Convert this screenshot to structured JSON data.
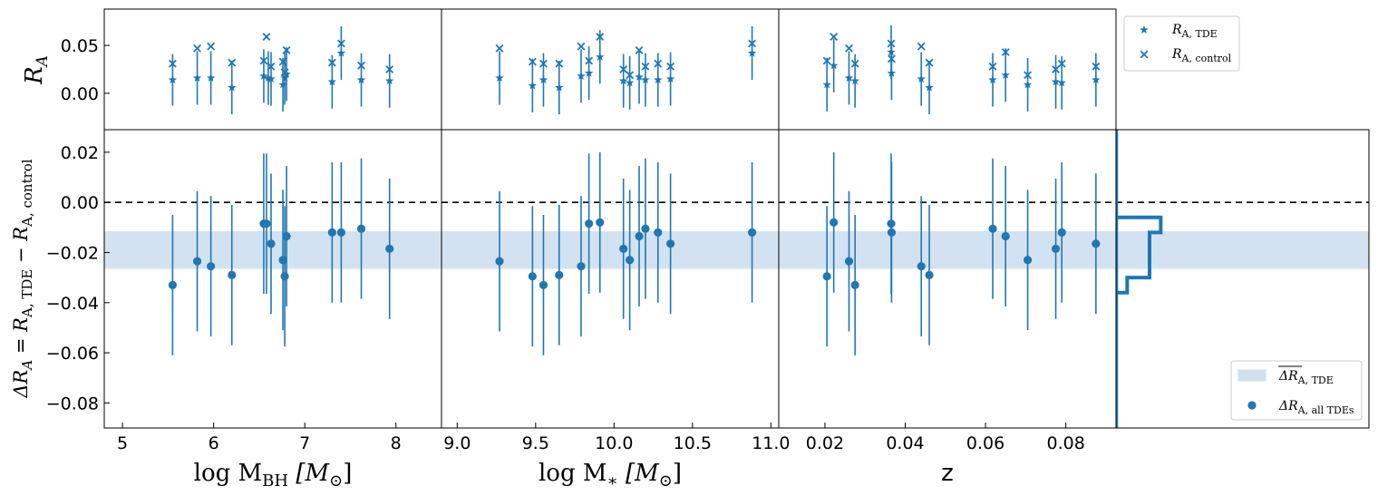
{
  "colors": {
    "series": "#1f77b4",
    "band": "#aecbe3",
    "axis": "#000000"
  },
  "chart_data": [
    {
      "panel": "top-mbh",
      "type": "scatter",
      "ylabel": "R_A",
      "ylim": [
        -0.038,
        0.088
      ],
      "xlim": [
        4.8,
        8.5
      ],
      "yticks": [
        0.0,
        0.05
      ],
      "ytick_labels": [
        "0.00",
        "0.05"
      ],
      "series": [
        {
          "name": "R_A,TDE",
          "marker": "star",
          "x": [
            5.55,
            5.82,
            5.97,
            6.2,
            6.55,
            6.6,
            6.63,
            6.76,
            6.78,
            6.8,
            7.3,
            7.4,
            7.62,
            7.93
          ],
          "y": [
            0.014,
            0.016,
            0.016,
            0.006,
            0.018,
            0.016,
            0.015,
            0.009,
            0.016,
            0.02,
            0.012,
            0.042,
            0.014,
            0.013
          ],
          "err": [
            0.027,
            0.028,
            0.028,
            0.028,
            0.028,
            0.028,
            0.028,
            0.028,
            0.028,
            0.028,
            0.028,
            0.028,
            0.028,
            0.028
          ]
        },
        {
          "name": "R_A,control",
          "marker": "x",
          "x": [
            5.55,
            5.82,
            5.97,
            6.2,
            6.55,
            6.58,
            6.63,
            6.76,
            6.78,
            6.8,
            7.3,
            7.4,
            7.62,
            7.93
          ],
          "y": [
            0.031,
            0.047,
            0.049,
            0.032,
            0.034,
            0.059,
            0.028,
            0.033,
            0.022,
            0.045,
            0.032,
            0.052,
            0.029,
            0.025
          ]
        }
      ]
    },
    {
      "panel": "top-mstar",
      "type": "scatter",
      "ylim": [
        -0.038,
        0.088
      ],
      "xlim": [
        8.9,
        11.05
      ],
      "series": [
        {
          "name": "R_A,TDE",
          "marker": "star",
          "x": [
            9.27,
            9.48,
            9.55,
            9.65,
            9.79,
            9.84,
            9.91,
            10.06,
            10.1,
            10.16,
            10.2,
            10.28,
            10.36,
            10.88
          ],
          "y": [
            0.016,
            0.008,
            0.014,
            0.006,
            0.018,
            0.021,
            0.038,
            0.013,
            0.011,
            0.017,
            0.014,
            0.014,
            0.015,
            0.042
          ],
          "err": [
            0.028,
            0.028,
            0.028,
            0.028,
            0.028,
            0.028,
            0.028,
            0.028,
            0.028,
            0.028,
            0.028,
            0.028,
            0.028,
            0.028
          ]
        },
        {
          "name": "R_A,control",
          "marker": "x",
          "x": [
            9.27,
            9.48,
            9.55,
            9.65,
            9.79,
            9.84,
            9.91,
            10.06,
            10.1,
            10.16,
            10.2,
            10.28,
            10.36,
            10.88
          ],
          "y": [
            0.047,
            0.033,
            0.031,
            0.031,
            0.049,
            0.034,
            0.059,
            0.025,
            0.019,
            0.045,
            0.028,
            0.031,
            0.028,
            0.052
          ]
        }
      ]
    },
    {
      "panel": "top-z",
      "type": "scatter",
      "ylim": [
        -0.038,
        0.088
      ],
      "xlim": [
        0.0085,
        0.0925
      ],
      "series": [
        {
          "name": "R_A,TDE",
          "marker": "star",
          "x": [
            0.0205,
            0.0222,
            0.026,
            0.0275,
            0.0365,
            0.0366,
            0.044,
            0.046,
            0.0618,
            0.065,
            0.0705,
            0.0775,
            0.079,
            0.0875
          ],
          "y": [
            0.009,
            0.029,
            0.016,
            0.013,
            0.043,
            0.021,
            0.015,
            0.006,
            0.014,
            0.019,
            0.009,
            0.012,
            0.011,
            0.014
          ],
          "err": [
            0.028,
            0.028,
            0.028,
            0.028,
            0.028,
            0.028,
            0.028,
            0.028,
            0.028,
            0.028,
            0.028,
            0.028,
            0.028,
            0.028
          ]
        },
        {
          "name": "R_A,control",
          "marker": "x",
          "x": [
            0.0205,
            0.0222,
            0.026,
            0.0275,
            0.0365,
            0.0366,
            0.044,
            0.046,
            0.0618,
            0.065,
            0.0705,
            0.0775,
            0.079,
            0.0875
          ],
          "y": [
            0.034,
            0.059,
            0.047,
            0.031,
            0.052,
            0.036,
            0.049,
            0.032,
            0.028,
            0.043,
            0.019,
            0.025,
            0.031,
            0.028
          ]
        }
      ]
    },
    {
      "panel": "bottom-mbh",
      "type": "scatter",
      "xlabel": "log M_BH [M_☉]",
      "ylabel": "ΔR_A = R_A,TDE − R_A,control",
      "xlim": [
        4.8,
        8.5
      ],
      "ylim": [
        -0.09,
        0.029
      ],
      "xticks": [
        5,
        6,
        7,
        8
      ],
      "xtick_labels": [
        "5",
        "6",
        "7",
        "8"
      ],
      "yticks": [
        -0.08,
        -0.06,
        -0.04,
        -0.02,
        0.0,
        0.02
      ],
      "ytick_labels": [
        "−0.08",
        "−0.06",
        "−0.04",
        "−0.02",
        "0.00",
        "0.02"
      ],
      "series": [
        {
          "name": "ΔR_A,all TDEs",
          "marker": "circle",
          "x": [
            5.55,
            5.82,
            5.97,
            6.2,
            6.55,
            6.58,
            6.63,
            6.76,
            6.78,
            6.8,
            7.3,
            7.4,
            7.62,
            7.93
          ],
          "y": [
            -0.033,
            -0.0235,
            -0.0255,
            -0.029,
            -0.0085,
            -0.0085,
            -0.0165,
            -0.023,
            -0.0295,
            -0.0135,
            -0.012,
            -0.012,
            -0.0105,
            -0.0185
          ],
          "err": [
            0.028,
            0.028,
            0.028,
            0.028,
            0.028,
            0.028,
            0.028,
            0.028,
            0.028,
            0.028,
            0.028,
            0.028,
            0.028,
            0.028
          ]
        }
      ],
      "band": {
        "name": "mean ΔR_A,TDE",
        "y": [
          -0.0265,
          -0.0115
        ]
      },
      "hline": 0.0
    },
    {
      "panel": "bottom-mstar",
      "type": "scatter",
      "xlabel": "log M_* [M_☉]",
      "xlim": [
        8.9,
        11.05
      ],
      "ylim": [
        -0.09,
        0.029
      ],
      "xticks": [
        9.0,
        9.5,
        10.0,
        10.5,
        11.0
      ],
      "xtick_labels": [
        "9.0",
        "9.5",
        "10.0",
        "10.5",
        "11.0"
      ],
      "series": [
        {
          "name": "ΔR_A,all TDEs",
          "marker": "circle",
          "x": [
            9.27,
            9.48,
            9.55,
            9.65,
            9.79,
            9.84,
            9.91,
            10.06,
            10.1,
            10.16,
            10.2,
            10.28,
            10.36,
            10.88
          ],
          "y": [
            -0.0235,
            -0.0295,
            -0.033,
            -0.029,
            -0.0255,
            -0.0085,
            -0.008,
            -0.0185,
            -0.023,
            -0.0135,
            -0.0105,
            -0.012,
            -0.0165,
            -0.012
          ],
          "err": [
            0.028,
            0.028,
            0.028,
            0.028,
            0.028,
            0.028,
            0.028,
            0.028,
            0.028,
            0.028,
            0.028,
            0.028,
            0.028,
            0.028
          ]
        }
      ],
      "band": {
        "y": [
          -0.0265,
          -0.0115
        ]
      },
      "hline": 0.0
    },
    {
      "panel": "bottom-z",
      "type": "scatter",
      "xlabel": "z",
      "xlim": [
        0.0085,
        0.0925
      ],
      "ylim": [
        -0.09,
        0.029
      ],
      "xticks": [
        0.02,
        0.04,
        0.06,
        0.08
      ],
      "xtick_labels": [
        "0.02",
        "0.04",
        "0.06",
        "0.08"
      ],
      "series": [
        {
          "name": "ΔR_A,all TDEs",
          "marker": "circle",
          "x": [
            0.0205,
            0.0222,
            0.026,
            0.0275,
            0.0365,
            0.0366,
            0.044,
            0.046,
            0.0618,
            0.065,
            0.0705,
            0.0775,
            0.079,
            0.0875
          ],
          "y": [
            -0.0295,
            -0.008,
            -0.0235,
            -0.033,
            -0.0085,
            -0.012,
            -0.0255,
            -0.029,
            -0.0105,
            -0.0135,
            -0.023,
            -0.0185,
            -0.012,
            -0.0165
          ],
          "err": [
            0.028,
            0.028,
            0.028,
            0.028,
            0.028,
            0.028,
            0.028,
            0.028,
            0.028,
            0.028,
            0.028,
            0.028,
            0.028,
            0.028
          ]
        }
      ],
      "band": {
        "y": [
          -0.0265,
          -0.0115
        ]
      },
      "hline": 0.0
    },
    {
      "panel": "bottom-hist",
      "type": "histogram",
      "orientation": "horizontal",
      "ylim": [
        -0.09,
        0.029
      ],
      "bin_edges": [
        -0.036,
        -0.03,
        -0.012,
        -0.006
      ],
      "counts": [
        1,
        3,
        4
      ]
    }
  ],
  "legends": {
    "top": {
      "placement": "upper-right outside",
      "entries": [
        {
          "marker": "star",
          "label": "R",
          "sub": "A, TDE"
        },
        {
          "marker": "x",
          "label": "R",
          "sub": "A, control"
        }
      ]
    },
    "bottom": {
      "placement": "lower-right",
      "entries": [
        {
          "marker": "band",
          "label": "ΔR",
          "sub": "A, TDE"
        },
        {
          "marker": "circle",
          "label": "ΔR",
          "sub": "A, all TDEs"
        }
      ]
    }
  },
  "labels": {
    "top_ylabel": "R",
    "top_ylabel_sub": "A",
    "bottom_ylabel": "ΔR",
    "bottom_ylabel_eq": " = R",
    "bottom_ylabel_sub1": "A, TDE",
    "bottom_ylabel_minus": " − R",
    "bottom_ylabel_sub2": "A, control",
    "xlabel_mbh_main": "log M",
    "xlabel_mbh_sub": "BH",
    "xlabel_mbh_unit": " [M",
    "xlabel_mbh_sun": "⊙",
    "xlabel_mstar_main": "log M",
    "xlabel_mstar_sub": "∗",
    "xlabel_mstar_unit": " [M",
    "xlabel_mstar_sun": "⊙",
    "xlabel_close": "]",
    "xlabel_z": "z"
  }
}
